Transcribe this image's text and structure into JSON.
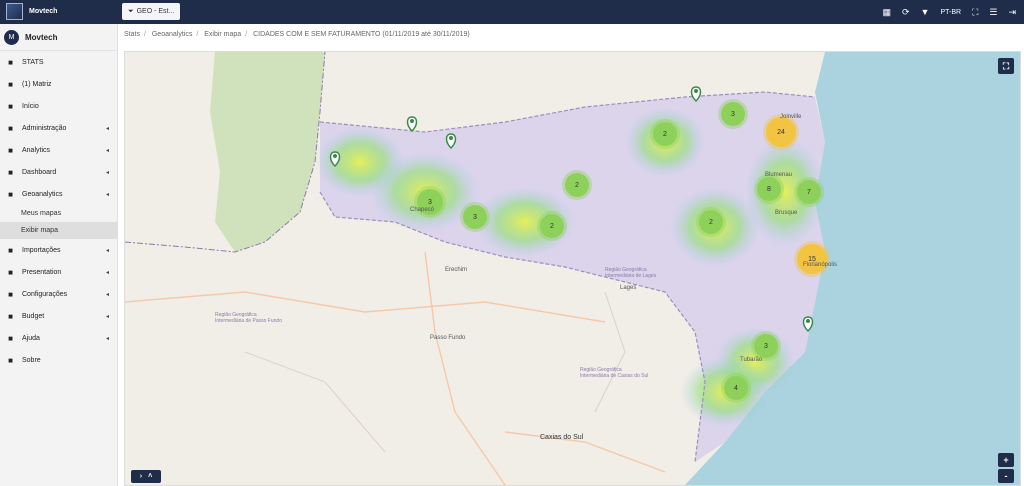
{
  "app": {
    "name": "Movtech",
    "user_initial": "M",
    "user_name": "Movtech"
  },
  "topbar": {
    "geo_button_label": "GEO - Est...",
    "language": "PT-BR"
  },
  "sidebar": {
    "items": [
      {
        "label": "STATS",
        "icon": "cube-icon",
        "has_caret": false
      },
      {
        "label": "(1) Matriz",
        "icon": "building-icon",
        "has_caret": false
      },
      {
        "label": "Início",
        "icon": "home-icon",
        "has_caret": false
      },
      {
        "label": "Administração",
        "icon": "gear-icon",
        "has_caret": true
      },
      {
        "label": "Analytics",
        "icon": "table-icon",
        "has_caret": true
      },
      {
        "label": "Dashboard",
        "icon": "bar-chart-icon",
        "has_caret": true
      },
      {
        "label": "Geoanalytics",
        "icon": "globe-icon",
        "has_caret": true
      }
    ],
    "sub_items": [
      {
        "label": "Meus mapas",
        "active": false
      },
      {
        "label": "Exibir mapa",
        "active": true
      }
    ],
    "items_after": [
      {
        "label": "Importações",
        "icon": "database-icon",
        "has_caret": true
      },
      {
        "label": "Presentation",
        "icon": "play-icon",
        "has_caret": true
      },
      {
        "label": "Configurações",
        "icon": "gears-icon",
        "has_caret": true
      },
      {
        "label": "Budget",
        "icon": "dollar-icon",
        "has_caret": true
      },
      {
        "label": "Ajuda",
        "icon": "question-icon",
        "has_caret": true
      },
      {
        "label": "Sobre",
        "icon": "info-icon",
        "has_caret": false
      }
    ]
  },
  "breadcrumb": [
    "Stats",
    "Geoanalytics",
    "Exibir mapa",
    "CIDADES COM E SEM FATURAMENTO (01/11/2019 até 30/11/2019)"
  ],
  "map": {
    "clusters": [
      {
        "count": "3",
        "color": "#8ed15a"
      },
      {
        "count": "2",
        "color": "#8ed15a"
      },
      {
        "count": "24",
        "color": "#f2c441"
      },
      {
        "count": "3",
        "color": "#8ed15a"
      },
      {
        "count": "3",
        "color": "#8ed15a"
      },
      {
        "count": "2",
        "color": "#8ed15a"
      },
      {
        "count": "2",
        "color": "#8ed15a"
      },
      {
        "count": "8",
        "color": "#8ed15a"
      },
      {
        "count": "7",
        "color": "#8ed15a"
      },
      {
        "count": "2",
        "color": "#8ed15a"
      },
      {
        "count": "15",
        "color": "#f2c441"
      },
      {
        "count": "3",
        "color": "#8ed15a"
      },
      {
        "count": "4",
        "color": "#8ed15a"
      }
    ],
    "labels": [
      "Erechim",
      "Passo Fundo",
      "Caxias do Sul",
      "Lages",
      "Chapecó",
      "Joinville",
      "Blumenau",
      "Brusque",
      "Tubarão",
      "Florianópolis",
      "Região Geográfica Intermediária de Passo Fundo",
      "Região Geográfica Intermediária de Caxias do Sul",
      "Região Geográfica Intermediária de Lages"
    ],
    "zoom_in": "+",
    "zoom_out": "-"
  },
  "colors": {
    "topbar": "#1f2d4a",
    "cluster_small": "#8ed15a",
    "cluster_large": "#f2c441",
    "water": "#aad3df"
  }
}
